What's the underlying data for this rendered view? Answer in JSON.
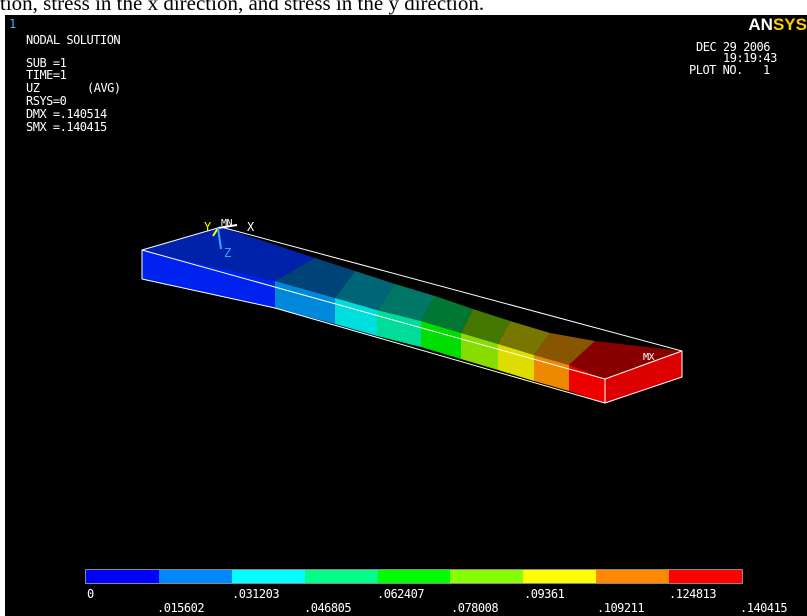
{
  "caption": "tion, stress in the x direction, and stress in the y direction.",
  "window_number": "1",
  "logo": {
    "an": "AN",
    "sys": "SYS"
  },
  "info": {
    "title": "NODAL SOLUTION",
    "sub": "SUB =1",
    "time": "TIME=1",
    "item": "UZ",
    "avg": "(AVG)",
    "rsys": "RSYS=0",
    "dmx": "DMX =.140514",
    "smx": "SMX =.140415"
  },
  "plot_info": {
    "date": "DEC 29 2006",
    "time": "19:19:43",
    "plot_no": "PLOT NO.   1"
  },
  "axis_labels": {
    "y": "Y",
    "mn": "MN",
    "x": "X",
    "z": "Z"
  },
  "max_marker": "MX",
  "legend": {
    "colors": [
      "#0000ff",
      "#0088ff",
      "#00ffff",
      "#00ff88",
      "#00ff00",
      "#88ff00",
      "#ffff00",
      "#ff8800",
      "#ff0000"
    ],
    "upper_labels": [
      "0",
      ".031203",
      ".062407",
      ".09361",
      ".124813"
    ],
    "lower_labels": [
      ".015602",
      ".046805",
      ".078008",
      ".109211",
      ".140415"
    ]
  }
}
